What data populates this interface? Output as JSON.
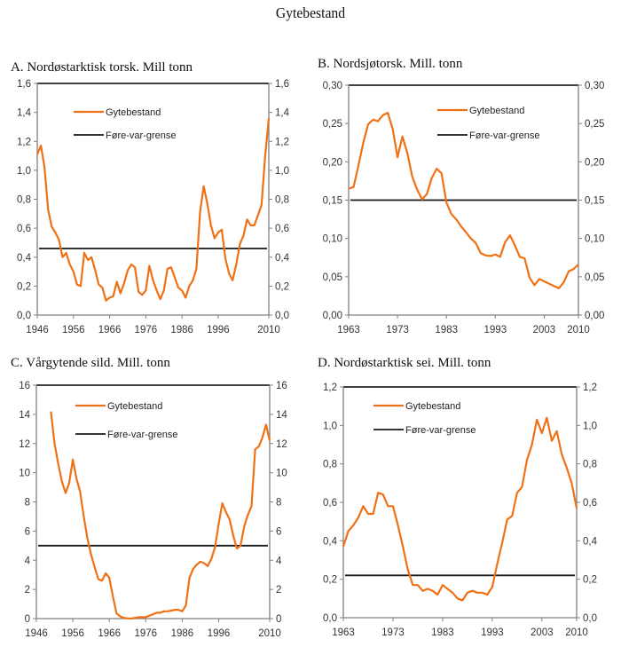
{
  "title": "Gytebestand",
  "colors": {
    "series": "#f07015",
    "threshold": "#1a1a1a",
    "axis": "#808080"
  },
  "chart_data": [
    {
      "type": "line",
      "title": "A. Nordøstarktisk torsk. Mill tonn",
      "ylim": [
        0,
        1.6
      ],
      "yticks": [
        "0,0",
        "0,2",
        "0,4",
        "0,6",
        "0,8",
        "1,0",
        "1,2",
        "1,4",
        "1,6"
      ],
      "ytick_values": [
        0,
        0.2,
        0.4,
        0.6,
        0.8,
        1.0,
        1.2,
        1.4,
        1.6
      ],
      "xlim": [
        1946,
        2010
      ],
      "xticks": [
        "1946",
        "1956",
        "1966",
        "1976",
        "1986",
        "1996",
        "2010"
      ],
      "xtick_values": [
        1946,
        1956,
        1966,
        1976,
        1986,
        1996,
        2010
      ],
      "legend": [
        "Gytebestand",
        "Føre-var-grense"
      ],
      "series": [
        {
          "name": "Gytebestand",
          "x_start": 1946,
          "values": [
            1.11,
            1.17,
            1.02,
            0.73,
            0.61,
            0.57,
            0.52,
            0.4,
            0.43,
            0.35,
            0.3,
            0.21,
            0.2,
            0.43,
            0.38,
            0.4,
            0.31,
            0.21,
            0.19,
            0.1,
            0.12,
            0.13,
            0.23,
            0.15,
            0.22,
            0.31,
            0.35,
            0.33,
            0.16,
            0.14,
            0.17,
            0.34,
            0.24,
            0.17,
            0.11,
            0.17,
            0.32,
            0.33,
            0.26,
            0.19,
            0.17,
            0.12,
            0.2,
            0.24,
            0.32,
            0.71,
            0.89,
            0.77,
            0.62,
            0.53,
            0.57,
            0.59,
            0.39,
            0.29,
            0.24,
            0.35,
            0.49,
            0.55,
            0.66,
            0.62,
            0.62,
            0.69,
            0.76,
            1.1,
            1.36
          ]
        },
        {
          "name": "Føre-var-grense",
          "constant": 0.46
        }
      ]
    },
    {
      "type": "line",
      "title": "B. Nordsjøtorsk. Mill. tonn",
      "ylim": [
        0,
        0.3
      ],
      "yticks": [
        "0,00",
        "0,05",
        "0,10",
        "0,15",
        "0,20",
        "0,25",
        "0,30"
      ],
      "ytick_values": [
        0,
        0.05,
        0.1,
        0.15,
        0.2,
        0.25,
        0.3
      ],
      "xlim": [
        1963,
        2010
      ],
      "xticks": [
        "1963",
        "1973",
        "1983",
        "1993",
        "2003",
        "2010"
      ],
      "xtick_values": [
        1963,
        1973,
        1983,
        1993,
        2003,
        2010
      ],
      "legend": [
        "Gytebestand",
        "Føre-var-grense"
      ],
      "series": [
        {
          "name": "Gytebestand",
          "x_start": 1963,
          "values": [
            0.165,
            0.167,
            0.195,
            0.225,
            0.249,
            0.255,
            0.253,
            0.261,
            0.264,
            0.243,
            0.206,
            0.233,
            0.212,
            0.181,
            0.164,
            0.151,
            0.158,
            0.179,
            0.191,
            0.185,
            0.147,
            0.132,
            0.125,
            0.116,
            0.108,
            0.1,
            0.094,
            0.081,
            0.078,
            0.077,
            0.079,
            0.076,
            0.095,
            0.104,
            0.091,
            0.076,
            0.074,
            0.049,
            0.039,
            0.047,
            0.044,
            0.041,
            0.038,
            0.035,
            0.043,
            0.057,
            0.06,
            0.066
          ]
        },
        {
          "name": "Føre-var-grense",
          "constant": 0.15
        }
      ]
    },
    {
      "type": "line",
      "title": "C. Vårgytende sild. Mill. tonn",
      "ylim": [
        0,
        16
      ],
      "yticks": [
        "0",
        "2",
        "4",
        "6",
        "8",
        "10",
        "12",
        "14",
        "16"
      ],
      "ytick_values": [
        0,
        2,
        4,
        6,
        8,
        10,
        12,
        14,
        16
      ],
      "xlim": [
        1946,
        2010
      ],
      "xticks": [
        "1946",
        "1956",
        "1966",
        "1976",
        "1986",
        "1996",
        "2010"
      ],
      "xtick_values": [
        1946,
        1956,
        1966,
        1976,
        1986,
        1996,
        2010
      ],
      "legend": [
        "Gytebestand",
        "Føre-var-grense"
      ],
      "series": [
        {
          "name": "Gytebestand",
          "x_start": 1950,
          "values": [
            14.2,
            12.0,
            10.6,
            9.4,
            8.6,
            9.3,
            10.9,
            9.6,
            8.7,
            7.0,
            5.5,
            4.4,
            3.5,
            2.7,
            2.6,
            3.1,
            2.8,
            1.5,
            0.35,
            0.15,
            0.05,
            0.02,
            0.0,
            0.05,
            0.1,
            0.1,
            0.1,
            0.2,
            0.3,
            0.4,
            0.4,
            0.5,
            0.5,
            0.55,
            0.6,
            0.6,
            0.5,
            0.9,
            2.8,
            3.4,
            3.7,
            3.9,
            3.8,
            3.6,
            4.1,
            4.9,
            6.5,
            7.9,
            7.3,
            6.8,
            5.7,
            4.8,
            5.0,
            6.3,
            7.1,
            7.7,
            11.6,
            11.8,
            12.4,
            13.3,
            12.2
          ]
        },
        {
          "name": "Føre-var-grense",
          "constant": 5.0
        }
      ]
    },
    {
      "type": "line",
      "title": "D. Nordøstarktisk sei. Mill. tonn",
      "ylim": [
        0,
        1.2
      ],
      "yticks": [
        "0,0",
        "0,2",
        "0,4",
        "0,6",
        "0,8",
        "1,0",
        "1,2"
      ],
      "ytick_values": [
        0,
        0.2,
        0.4,
        0.6,
        0.8,
        1.0,
        1.2
      ],
      "xlim": [
        1963,
        2010
      ],
      "xticks": [
        "1963",
        "1973",
        "1983",
        "1993",
        "2003",
        "2010"
      ],
      "xtick_values": [
        1963,
        1973,
        1983,
        1993,
        2003,
        2010
      ],
      "legend": [
        "Gytebestand",
        "Føre-var-grense"
      ],
      "series": [
        {
          "name": "Gytebestand",
          "x_start": 1963,
          "values": [
            0.37,
            0.45,
            0.48,
            0.52,
            0.58,
            0.54,
            0.54,
            0.65,
            0.64,
            0.58,
            0.58,
            0.48,
            0.37,
            0.25,
            0.17,
            0.17,
            0.14,
            0.15,
            0.14,
            0.12,
            0.17,
            0.15,
            0.13,
            0.1,
            0.09,
            0.13,
            0.14,
            0.13,
            0.13,
            0.12,
            0.16,
            0.28,
            0.39,
            0.51,
            0.53,
            0.65,
            0.68,
            0.82,
            0.9,
            1.03,
            0.96,
            1.04,
            0.92,
            0.97,
            0.85,
            0.78,
            0.7,
            0.57
          ]
        },
        {
          "name": "Føre-var-grense",
          "constant": 0.22
        }
      ]
    }
  ]
}
